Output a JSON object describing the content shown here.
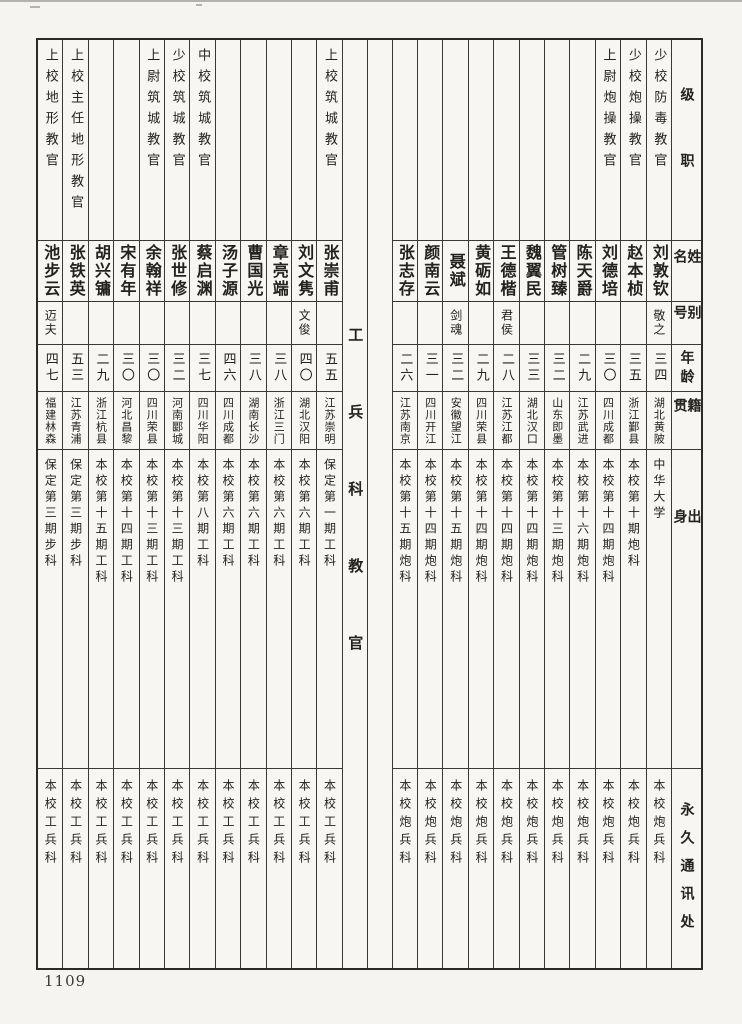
{
  "page_number": "1109",
  "colors": {
    "paper": "#f5f4f0",
    "ink": "#23221f",
    "grid_line": "#3b3933",
    "outer_border": "#2b2a26"
  },
  "header_column": {
    "rank": "级职",
    "name": "姓名",
    "alias": "别号",
    "age": "年龄",
    "native": "籍贯",
    "origin": "出身",
    "address": "永久通讯处"
  },
  "section_divider": {
    "title": "工兵科教官"
  },
  "right_section": {
    "people": [
      {
        "rank": "少校防毒教官",
        "name": "刘敦钦",
        "alias": "敬之",
        "age": "三四",
        "native": "湖北黄陂",
        "origin": "中华大学",
        "address": "本校炮兵科"
      },
      {
        "rank": "少校炮操教官",
        "name": "赵本桢",
        "alias": "",
        "age": "三五",
        "native": "浙江鄞县",
        "origin": "本校第十期炮科",
        "address": "本校炮兵科"
      },
      {
        "rank": "上尉炮操教官",
        "name": "刘德培",
        "alias": "",
        "age": "三〇",
        "native": "四川成都",
        "origin": "本校第十四期炮科",
        "address": "本校炮兵科"
      },
      {
        "rank": "",
        "name": "陈天爵",
        "alias": "",
        "age": "二九",
        "native": "江苏武进",
        "origin": "本校第十六期炮科",
        "address": "本校炮兵科"
      },
      {
        "rank": "",
        "name": "管树臻",
        "alias": "",
        "age": "三二",
        "native": "山东即墨",
        "origin": "本校第十三期炮科",
        "address": "本校炮兵科"
      },
      {
        "rank": "",
        "name": "魏翼民",
        "alias": "",
        "age": "三三",
        "native": "湖北汉口",
        "origin": "本校第十四期炮科",
        "address": "本校炮兵科"
      },
      {
        "rank": "",
        "name": "王德楷",
        "alias": "君侯",
        "age": "二八",
        "native": "江苏江都",
        "origin": "本校第十四期炮科",
        "address": "本校炮兵科"
      },
      {
        "rank": "",
        "name": "黄砺如",
        "alias": "",
        "age": "二九",
        "native": "四川荣县",
        "origin": "本校第十四期炮科",
        "address": "本校炮兵科"
      },
      {
        "rank": "",
        "name": "聂斌",
        "alias": "剑魂",
        "age": "三二",
        "native": "安徽望江",
        "origin": "本校第十五期炮科",
        "address": "本校炮兵科"
      },
      {
        "rank": "",
        "name": "颜南云",
        "alias": "",
        "age": "三一",
        "native": "四川开江",
        "origin": "本校第十四期炮科",
        "address": "本校炮兵科"
      },
      {
        "rank": "",
        "name": "张志存",
        "alias": "",
        "age": "二六",
        "native": "江苏南京",
        "origin": "本校第十五期炮科",
        "address": "本校炮兵科"
      }
    ]
  },
  "left_section": {
    "people": [
      {
        "rank": "上校筑城教官",
        "name": "张崇甫",
        "alias": "",
        "age": "五五",
        "native": "江苏崇明",
        "origin": "保定第一期工科",
        "address": "本校工兵科"
      },
      {
        "rank": "",
        "name": "刘文隽",
        "alias": "文俊",
        "age": "四〇",
        "native": "湖北汉阳",
        "origin": "本校第六期工科",
        "address": "本校工兵科"
      },
      {
        "rank": "",
        "name": "章亮端",
        "alias": "",
        "age": "三八",
        "native": "浙江三门",
        "origin": "本校第六期工科",
        "address": "本校工兵科"
      },
      {
        "rank": "",
        "name": "曹国光",
        "alias": "",
        "age": "三八",
        "native": "湖南长沙",
        "origin": "本校第六期工科",
        "address": "本校工兵科"
      },
      {
        "rank": "",
        "name": "汤子源",
        "alias": "",
        "age": "四六",
        "native": "四川成都",
        "origin": "本校第六期工科",
        "address": "本校工兵科"
      },
      {
        "rank": "中校筑城教官",
        "name": "蔡启渊",
        "alias": "",
        "age": "三七",
        "native": "四川华阳",
        "origin": "本校第八期工科",
        "address": "本校工兵科"
      },
      {
        "rank": "少校筑城教官",
        "name": "张世修",
        "alias": "",
        "age": "三二",
        "native": "河南郾城",
        "origin": "本校第十三期工科",
        "address": "本校工兵科"
      },
      {
        "rank": "上尉筑城教官",
        "name": "余翰祥",
        "alias": "",
        "age": "三〇",
        "native": "四川荣县",
        "origin": "本校第十三期工科",
        "address": "本校工兵科"
      },
      {
        "rank": "",
        "name": "宋有年",
        "alias": "",
        "age": "三〇",
        "native": "河北昌黎",
        "origin": "本校第十四期工科",
        "address": "本校工兵科"
      },
      {
        "rank": "",
        "name": "胡兴镛",
        "alias": "",
        "age": "二九",
        "native": "浙江杭县",
        "origin": "本校第十五期工科",
        "address": "本校工兵科"
      },
      {
        "rank": "上校主任地形教官",
        "name": "张铁英",
        "alias": "",
        "age": "五三",
        "native": "江苏青浦",
        "origin": "保定第三期步科",
        "address": "本校工兵科"
      },
      {
        "rank": "上校地形教官",
        "name": "池步云",
        "alias": "迈夫",
        "age": "四七",
        "native": "福建林森",
        "origin": "保定第三期步科",
        "address": "本校工兵科"
      }
    ]
  }
}
